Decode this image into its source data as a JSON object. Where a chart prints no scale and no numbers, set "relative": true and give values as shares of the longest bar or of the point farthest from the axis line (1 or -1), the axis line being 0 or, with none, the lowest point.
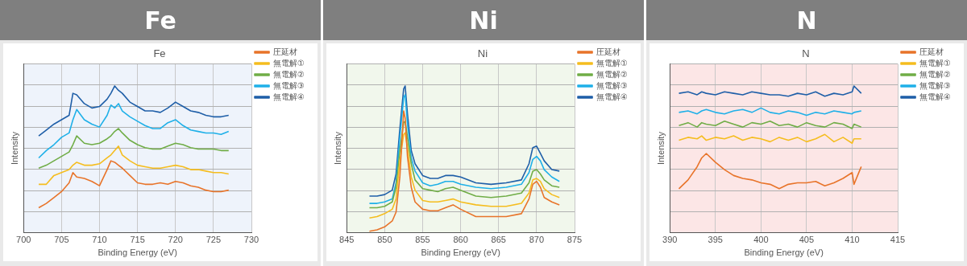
{
  "chart_data": [
    {
      "type": "line",
      "title": "Fe",
      "subtitle": "Fe",
      "xlabel": "Binding Energy (eV)",
      "ylabel": "Intensity",
      "relative": true,
      "grid": true,
      "legend": "top right",
      "xlim": [
        700,
        730
      ],
      "xticks": [
        700,
        705,
        710,
        715,
        720,
        725,
        730
      ],
      "x": [
        702,
        703,
        704,
        705,
        706,
        706.5,
        707,
        708,
        709,
        710,
        711,
        711.5,
        712,
        712.5,
        713,
        714,
        715,
        716,
        717,
        718,
        719,
        720,
        721,
        722,
        723,
        724,
        725,
        726,
        727
      ],
      "series": [
        {
          "name": "圧延材",
          "color": "#e8742a",
          "values": [
            0.17,
            0.2,
            0.24,
            0.28,
            0.34,
            0.41,
            0.38,
            0.37,
            0.35,
            0.32,
            0.43,
            0.49,
            0.48,
            0.46,
            0.44,
            0.39,
            0.34,
            0.33,
            0.33,
            0.34,
            0.33,
            0.35,
            0.34,
            0.32,
            0.31,
            0.29,
            0.28,
            0.28,
            0.29
          ]
        },
        {
          "name": "無電解①",
          "color": "#f5bd1f",
          "values": [
            0.33,
            0.33,
            0.39,
            0.41,
            0.43,
            0.46,
            0.48,
            0.46,
            0.46,
            0.47,
            0.51,
            0.53,
            0.56,
            0.59,
            0.53,
            0.49,
            0.46,
            0.45,
            0.44,
            0.44,
            0.45,
            0.46,
            0.45,
            0.43,
            0.43,
            0.42,
            0.41,
            0.41,
            0.4
          ]
        },
        {
          "name": "無電解②",
          "color": "#70ad47",
          "values": [
            0.44,
            0.46,
            0.49,
            0.52,
            0.55,
            0.6,
            0.66,
            0.61,
            0.6,
            0.61,
            0.64,
            0.66,
            0.69,
            0.71,
            0.68,
            0.63,
            0.6,
            0.58,
            0.57,
            0.57,
            0.59,
            0.61,
            0.6,
            0.58,
            0.57,
            0.57,
            0.57,
            0.56,
            0.56
          ]
        },
        {
          "name": "無電解③",
          "color": "#1fb0e8",
          "values": [
            0.51,
            0.56,
            0.6,
            0.65,
            0.68,
            0.77,
            0.84,
            0.77,
            0.74,
            0.72,
            0.8,
            0.87,
            0.85,
            0.88,
            0.83,
            0.79,
            0.76,
            0.73,
            0.71,
            0.71,
            0.75,
            0.77,
            0.73,
            0.7,
            0.69,
            0.68,
            0.68,
            0.67,
            0.69
          ]
        },
        {
          "name": "無電解④",
          "color": "#1f5fa8",
          "values": [
            0.66,
            0.7,
            0.74,
            0.77,
            0.8,
            0.95,
            0.94,
            0.88,
            0.85,
            0.86,
            0.91,
            0.95,
            1.0,
            0.97,
            0.95,
            0.89,
            0.86,
            0.83,
            0.83,
            0.82,
            0.85,
            0.89,
            0.86,
            0.83,
            0.82,
            0.8,
            0.79,
            0.79,
            0.8
          ]
        }
      ]
    },
    {
      "type": "line",
      "title": "Ni",
      "subtitle": "Ni",
      "xlabel": "Binding Energy (eV)",
      "ylabel": "Intensity",
      "relative": true,
      "grid": true,
      "legend": "top right",
      "xlim": [
        845,
        875
      ],
      "xticks": [
        845,
        850,
        855,
        860,
        865,
        870,
        875
      ],
      "x": [
        848,
        849,
        850,
        851,
        851.5,
        852,
        852.5,
        852.7,
        853,
        853.5,
        854,
        855,
        856,
        857,
        858,
        859,
        860,
        862,
        864,
        866,
        868,
        869,
        869.5,
        870,
        870.5,
        871,
        872,
        873
      ],
      "series": [
        {
          "name": "圧延材",
          "color": "#e8742a",
          "values": [
            0.01,
            0.02,
            0.04,
            0.08,
            0.14,
            0.38,
            0.83,
            0.78,
            0.52,
            0.31,
            0.21,
            0.16,
            0.15,
            0.15,
            0.17,
            0.19,
            0.16,
            0.11,
            0.11,
            0.11,
            0.13,
            0.23,
            0.33,
            0.35,
            0.31,
            0.24,
            0.21,
            0.19
          ]
        },
        {
          "name": "無電解①",
          "color": "#f5bd1f",
          "values": [
            0.1,
            0.11,
            0.13,
            0.16,
            0.23,
            0.49,
            0.67,
            0.68,
            0.58,
            0.38,
            0.29,
            0.22,
            0.21,
            0.21,
            0.22,
            0.23,
            0.21,
            0.19,
            0.18,
            0.18,
            0.2,
            0.27,
            0.36,
            0.37,
            0.35,
            0.3,
            0.26,
            0.24
          ]
        },
        {
          "name": "無電解②",
          "color": "#70ad47",
          "values": [
            0.17,
            0.17,
            0.18,
            0.21,
            0.31,
            0.56,
            0.75,
            0.76,
            0.65,
            0.47,
            0.36,
            0.3,
            0.29,
            0.28,
            0.3,
            0.31,
            0.29,
            0.25,
            0.24,
            0.25,
            0.27,
            0.34,
            0.42,
            0.43,
            0.4,
            0.36,
            0.32,
            0.31
          ]
        },
        {
          "name": "無電解③",
          "color": "#1fb0e8",
          "values": [
            0.2,
            0.2,
            0.21,
            0.23,
            0.34,
            0.65,
            0.92,
            0.94,
            0.74,
            0.51,
            0.42,
            0.34,
            0.32,
            0.33,
            0.35,
            0.35,
            0.33,
            0.31,
            0.3,
            0.31,
            0.33,
            0.41,
            0.5,
            0.52,
            0.49,
            0.43,
            0.38,
            0.35
          ]
        },
        {
          "name": "無電解④",
          "color": "#1f5fa8",
          "values": [
            0.25,
            0.25,
            0.26,
            0.29,
            0.4,
            0.71,
            0.98,
            1.0,
            0.81,
            0.56,
            0.47,
            0.39,
            0.37,
            0.37,
            0.39,
            0.39,
            0.38,
            0.34,
            0.33,
            0.34,
            0.36,
            0.47,
            0.58,
            0.59,
            0.54,
            0.49,
            0.43,
            0.42
          ]
        }
      ]
    },
    {
      "type": "line",
      "title": "N",
      "subtitle": "N",
      "xlabel": "Binding Energy (eV)",
      "ylabel": "Intensity",
      "relative": true,
      "grid": true,
      "legend": "top right",
      "xlim": [
        390,
        415
      ],
      "xticks": [
        390,
        395,
        400,
        405,
        410,
        415
      ],
      "x": [
        391,
        392,
        393,
        393.5,
        394,
        395,
        396,
        397,
        398,
        399,
        400,
        401,
        402,
        403,
        404,
        405,
        406,
        407,
        408,
        409,
        410,
        410.2,
        411
      ],
      "series": [
        {
          "name": "圧延材",
          "color": "#e8742a",
          "values": [
            0.3,
            0.36,
            0.45,
            0.51,
            0.54,
            0.48,
            0.43,
            0.39,
            0.37,
            0.36,
            0.34,
            0.33,
            0.3,
            0.33,
            0.34,
            0.34,
            0.35,
            0.32,
            0.34,
            0.37,
            0.41,
            0.33,
            0.45
          ]
        },
        {
          "name": "無電解①",
          "color": "#f5bd1f",
          "values": [
            0.63,
            0.65,
            0.64,
            0.66,
            0.63,
            0.65,
            0.64,
            0.66,
            0.63,
            0.65,
            0.64,
            0.62,
            0.65,
            0.63,
            0.65,
            0.62,
            0.64,
            0.67,
            0.62,
            0.65,
            0.61,
            0.64,
            0.64
          ]
        },
        {
          "name": "無電解②",
          "color": "#70ad47",
          "values": [
            0.73,
            0.75,
            0.72,
            0.75,
            0.74,
            0.73,
            0.76,
            0.74,
            0.72,
            0.75,
            0.74,
            0.76,
            0.73,
            0.74,
            0.72,
            0.75,
            0.73,
            0.72,
            0.75,
            0.74,
            0.71,
            0.74,
            0.72
          ]
        },
        {
          "name": "無電解③",
          "color": "#1fb0e8",
          "values": [
            0.82,
            0.83,
            0.81,
            0.83,
            0.84,
            0.82,
            0.81,
            0.83,
            0.84,
            0.82,
            0.85,
            0.82,
            0.81,
            0.83,
            0.82,
            0.8,
            0.82,
            0.81,
            0.83,
            0.82,
            0.81,
            0.82,
            0.83
          ]
        },
        {
          "name": "無電解④",
          "color": "#1f5fa8",
          "values": [
            0.95,
            0.96,
            0.94,
            0.96,
            0.95,
            0.94,
            0.96,
            0.95,
            0.94,
            0.96,
            0.95,
            0.94,
            0.94,
            0.93,
            0.95,
            0.94,
            0.96,
            0.93,
            0.95,
            0.94,
            0.96,
            1.0,
            0.95
          ]
        }
      ]
    }
  ]
}
